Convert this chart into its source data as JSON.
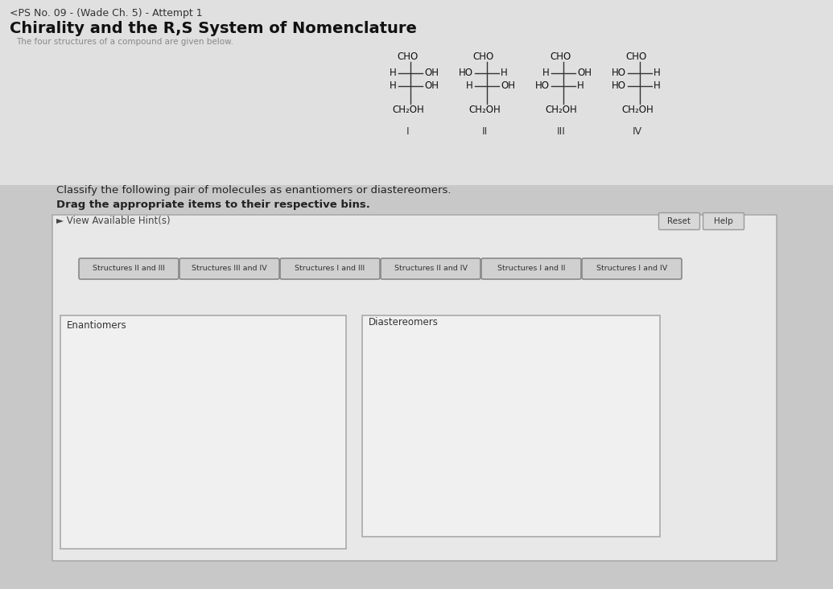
{
  "title_line1": "<PS No. 09 - (Wade Ch. 5) - Attempt 1",
  "title_line2": "Chirality and the R,S System of Nomenclature",
  "subtitle": "The four structures of a compound are given below.",
  "instruction1": "Classify the following pair of molecules as enantiomers or diastereomers.",
  "instruction2": "Drag the appropriate items to their respective bins.",
  "hint_label": "► View Available Hint(s)",
  "bg_color": "#c8c8c8",
  "header_color": "#e0e0e0",
  "panel_color": "#e8e8e8",
  "bin_color": "#f0f0f0",
  "structures": [
    {
      "label": "I",
      "row1_left": "H",
      "row1_right": "OH",
      "row2_left": "H",
      "row2_right": "OH"
    },
    {
      "label": "II",
      "row1_left": "HO",
      "row1_right": "H",
      "row2_left": "H",
      "row2_right": "OH"
    },
    {
      "label": "III",
      "row1_left": "H",
      "row1_right": "OH",
      "row2_left": "HO",
      "row2_right": "H"
    },
    {
      "label": "IV",
      "row1_left": "HO",
      "row1_right": "H",
      "row2_left": "HO",
      "row2_right": "H"
    }
  ],
  "buttons": [
    "Structures II and III",
    "Structures III and IV",
    "Structures I and III",
    "Structures II and IV",
    "Structures I and II",
    "Structures I and IV"
  ],
  "bin_labels": [
    "Enantiomers",
    "Diastereomers"
  ],
  "reset_btn": "Reset",
  "help_btn": "Help"
}
